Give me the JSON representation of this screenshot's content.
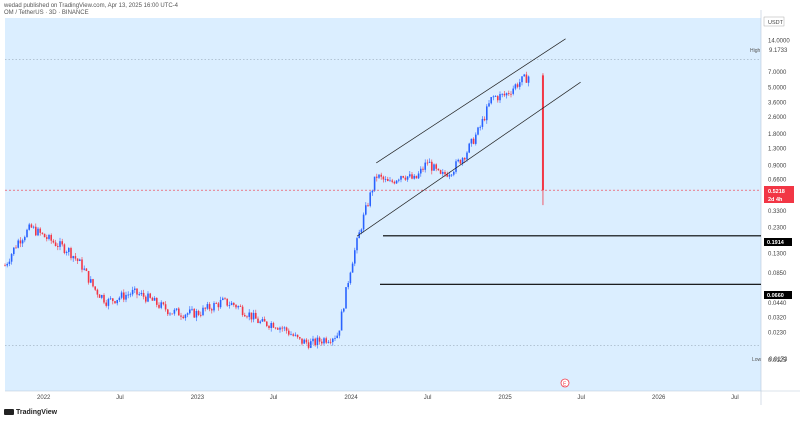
{
  "header": {
    "published": "wedad published on TradingView.com, Apr 13, 2025 16:00 UTC-4",
    "symbol_line": "OM / TetherUS · 3D · BINANCE"
  },
  "price_axis": {
    "currency": "USDT",
    "ticks": [
      "14.0000",
      "7.0000",
      "5.0000",
      "3.6000",
      "2.6000",
      "1.8000",
      "1.3000",
      "0.9000",
      "0.6600",
      "0.3300",
      "0.2300",
      "0.1300",
      "0.0850",
      "0.0440",
      "0.0320",
      "0.0230",
      "0.0125"
    ],
    "high_label": "High",
    "high_value": "9.1733",
    "low_label": "Low",
    "low_value": "0.0173"
  },
  "time_axis": {
    "labels": [
      "2022",
      "Jul",
      "2023",
      "Jul",
      "2024",
      "Jul",
      "2025",
      "Jul",
      "2026",
      "Jul"
    ]
  },
  "current_price": {
    "value": "0.5218",
    "sub": "2d 4h",
    "color": "#f23645"
  },
  "levels": [
    {
      "value": "0.1914"
    },
    {
      "value": "0.0660"
    }
  ],
  "colors": {
    "background": "#dbeeff",
    "up": "#2962ff",
    "down": "#f23645",
    "channel": "#222222",
    "level": "#000000"
  },
  "icons": {
    "event": "flag-icon",
    "logo": "tradingview-logo-icon"
  },
  "footer": {
    "brand": "TradingView"
  },
  "chart_data": {
    "type": "line",
    "title": "OM / TetherUS · 3D · BINANCE",
    "ylabel": "",
    "xlabel": "",
    "y_scale": "log",
    "ylim": [
      0.009,
      18
    ],
    "x": [
      "2021-10",
      "2021-11",
      "2021-12",
      "2022-01",
      "2022-02",
      "2022-03",
      "2022-04",
      "2022-05",
      "2022-06",
      "2022-07",
      "2022-08",
      "2022-09",
      "2022-10",
      "2022-11",
      "2022-12",
      "2023-01",
      "2023-02",
      "2023-03",
      "2023-04",
      "2023-05",
      "2023-06",
      "2023-07",
      "2023-08",
      "2023-09",
      "2023-10",
      "2023-11",
      "2023-12",
      "2024-01",
      "2024-02",
      "2024-03",
      "2024-04",
      "2024-05",
      "2024-06",
      "2024-07",
      "2024-08",
      "2024-09",
      "2024-10",
      "2024-11",
      "2024-12",
      "2025-01",
      "2025-02",
      "2025-03",
      "2025-04"
    ],
    "series": [
      {
        "values": [
          0.1,
          0.17,
          0.23,
          0.19,
          0.16,
          0.14,
          0.1,
          0.06,
          0.045,
          0.05,
          0.055,
          0.05,
          0.042,
          0.036,
          0.035,
          0.035,
          0.04,
          0.045,
          0.042,
          0.035,
          0.028,
          0.028,
          0.024,
          0.019,
          0.018,
          0.02,
          0.022,
          0.1,
          0.3,
          0.72,
          0.6,
          0.75,
          0.65,
          0.98,
          0.7,
          0.85,
          1.2,
          2.0,
          4.0,
          4.2,
          5.5,
          6.5,
          0.5218
        ]
      }
    ],
    "levels": [
      0.1914,
      0.066
    ],
    "high": 9.1733,
    "low": 0.0173,
    "current": 0.5218,
    "grid": true,
    "legend": "none"
  }
}
